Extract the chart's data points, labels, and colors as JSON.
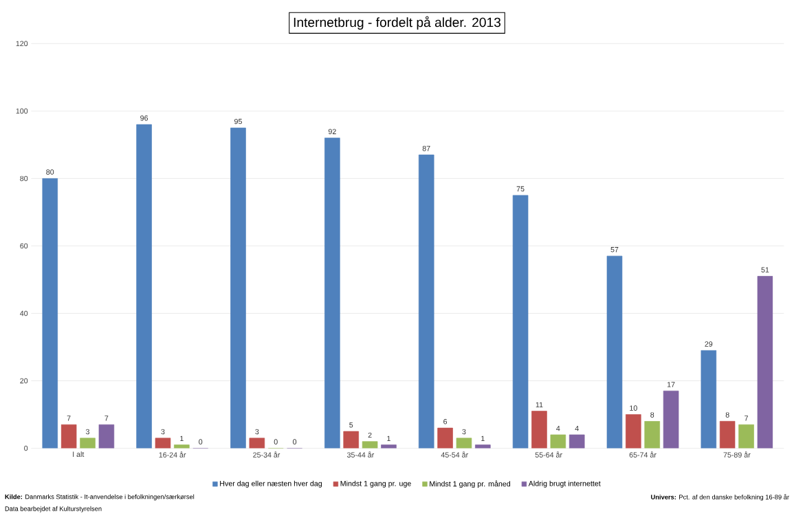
{
  "chart_data": {
    "type": "bar",
    "title": "Internetbrug - fordelt på alder. 2013",
    "categories": [
      "I alt",
      "16-24 år",
      "25-34 år",
      "35-44 år",
      "45-54 år",
      "55-64 år",
      "65-74 år",
      "75-89 år"
    ],
    "series": [
      {
        "name": "Hver dag eller næsten hver dag",
        "color": "#4f81bd",
        "values": [
          80,
          96,
          95,
          92,
          87,
          75,
          57,
          29
        ]
      },
      {
        "name": "Mindst 1 gang pr. uge",
        "color": "#c0504d",
        "values": [
          7,
          3,
          3,
          5,
          6,
          11,
          10,
          8
        ]
      },
      {
        "name": "Mindst 1 gang pr. måned",
        "color": "#9bbb59",
        "values": [
          3,
          1,
          0,
          2,
          3,
          4,
          8,
          7
        ]
      },
      {
        "name": "Aldrig brugt internettet",
        "color": "#8064a2",
        "values": [
          7,
          0,
          0,
          1,
          1,
          4,
          17,
          51
        ]
      }
    ],
    "ylim": [
      0,
      120
    ],
    "yticks": [
      0,
      20,
      40,
      60,
      80,
      100,
      120
    ],
    "grid": "y",
    "legend": "bottom",
    "data_labels": true,
    "annotations": [
      "**Kilde:** Danmarks Statistik - It-anvendelse i befolkningen/særkørsel",
      "Data bearbejdet af Kulturstyrelsen",
      "**Univers:** Pct. af den danske befolkning 16-89 år"
    ]
  }
}
